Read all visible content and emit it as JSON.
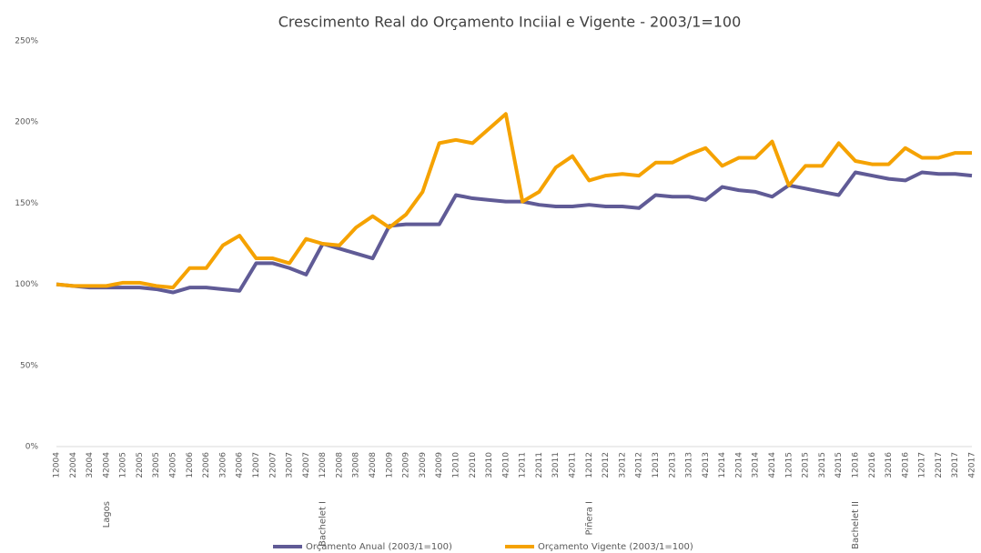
{
  "chart_data": {
    "type": "line",
    "title": "Crescimento Real do Orçamento Inciial e Vigente - 2003/1=100",
    "categories": [
      "12004",
      "22004",
      "32004",
      "42004",
      "12005",
      "22005",
      "32005",
      "42005",
      "12006",
      "22006",
      "32006",
      "42006",
      "12007",
      "22007",
      "32007",
      "42007",
      "12008",
      "22008",
      "32008",
      "42008",
      "12009",
      "22009",
      "32009",
      "42009",
      "12010",
      "22010",
      "32010",
      "42010",
      "12011",
      "22011",
      "32011",
      "42011",
      "12012",
      "22012",
      "32012",
      "42012",
      "12013",
      "22013",
      "32013",
      "42013",
      "12014",
      "22014",
      "32014",
      "42014",
      "12015",
      "22015",
      "32015",
      "42015",
      "12016",
      "22016",
      "32016",
      "42016",
      "12017",
      "22017",
      "32017",
      "42017"
    ],
    "period_labels": [
      "Lagos",
      "Bachelet I",
      "Piñera I",
      "Bachelet II"
    ],
    "series": [
      {
        "name": "Orçamento Anual (2003/1=100)",
        "color": "#605b96",
        "values": [
          100,
          99,
          98,
          98,
          98,
          98,
          97,
          95,
          98,
          98,
          97,
          96,
          113,
          113,
          110,
          106,
          125,
          122,
          119,
          116,
          136,
          137,
          137,
          137,
          155,
          153,
          152,
          151,
          151,
          149,
          148,
          148,
          149,
          148,
          148,
          147,
          155,
          154,
          154,
          152,
          160,
          158,
          157,
          154,
          161,
          159,
          157,
          155,
          169,
          167,
          165,
          164,
          169,
          168,
          168,
          167
        ]
      },
      {
        "name": "Orçamento Vigente (2003/1=100)",
        "color": "#f5a200",
        "values": [
          100,
          99,
          99,
          99,
          101,
          101,
          99,
          98,
          110,
          110,
          124,
          130,
          116,
          116,
          113,
          128,
          125,
          124,
          135,
          142,
          135,
          143,
          157,
          187,
          189,
          187,
          196,
          205,
          151,
          157,
          172,
          179,
          164,
          167,
          168,
          167,
          175,
          175,
          180,
          184,
          173,
          178,
          178,
          188,
          161,
          173,
          173,
          187,
          176,
          174,
          174,
          184,
          178,
          178,
          181,
          181
        ]
      }
    ],
    "ylim": [
      0,
      250
    ],
    "yticks": [
      {
        "value": 0,
        "label": "0%"
      },
      {
        "value": 50,
        "label": "50%"
      },
      {
        "value": 100,
        "label": "100%"
      },
      {
        "value": 150,
        "label": "150%"
      },
      {
        "value": 200,
        "label": "200%"
      },
      {
        "value": 250,
        "label": "250%"
      }
    ],
    "grid": false
  }
}
